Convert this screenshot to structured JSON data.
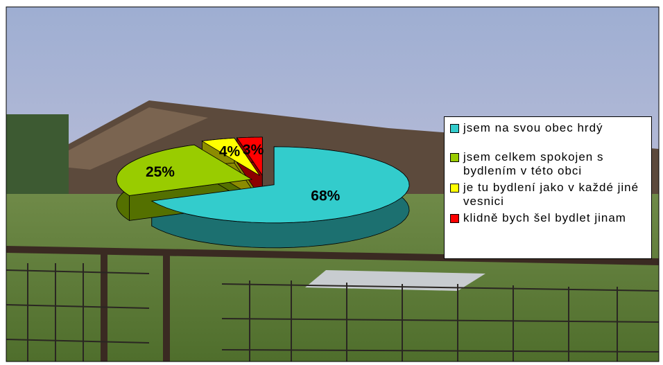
{
  "chart_data": {
    "type": "pie",
    "categories": [
      "jsem na svou obec hrdý",
      "jsem celkem spokojen s bydlením v této obci",
      "je tu bydlení jako v každé jiné vesnici",
      "klidně bych šel bydlet jinam"
    ],
    "values": [
      68,
      25,
      4,
      3
    ],
    "value_labels": [
      "68%",
      "25%",
      "4%",
      "3%"
    ],
    "colors": [
      "#33cccc",
      "#99cc00",
      "#ffff00",
      "#ff0000"
    ],
    "legend": "right"
  }
}
